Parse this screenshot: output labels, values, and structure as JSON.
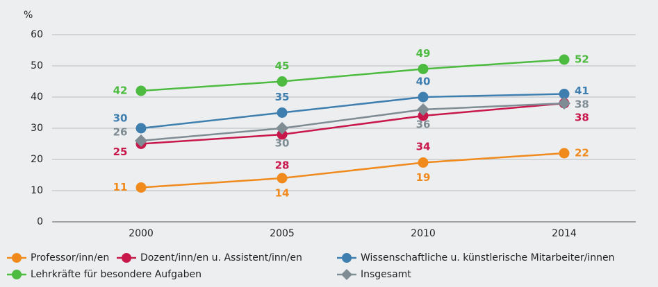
{
  "chart_data": {
    "type": "line",
    "y_label": "%",
    "categories": [
      "2000",
      "2005",
      "2010",
      "2014"
    ],
    "ylim": [
      0,
      60
    ],
    "yticks": [
      0,
      10,
      20,
      30,
      40,
      50,
      60
    ],
    "grid": true,
    "series": [
      {
        "name": "Professor/inn/en",
        "color": "#f08a1c",
        "marker": "circle",
        "values": [
          11,
          14,
          19,
          22
        ]
      },
      {
        "name": "Dozent/inn/en u. Assistent/inn/en",
        "color": "#c8174b",
        "marker": "circle",
        "values": [
          25,
          28,
          34,
          38
        ]
      },
      {
        "name": "Wissenschaftliche u. künstlerische Mitarbeiter/innen",
        "color": "#3f7fb0",
        "marker": "circle",
        "values": [
          30,
          35,
          40,
          41
        ]
      },
      {
        "name": "Lehrkräfte für besondere Aufgaben",
        "color": "#4cbb3f",
        "marker": "circle",
        "values": [
          42,
          45,
          49,
          52
        ]
      },
      {
        "name": "Insgesamt",
        "color": "#7f8c94",
        "marker": "diamond",
        "values": [
          26,
          30,
          36,
          38
        ]
      }
    ]
  }
}
